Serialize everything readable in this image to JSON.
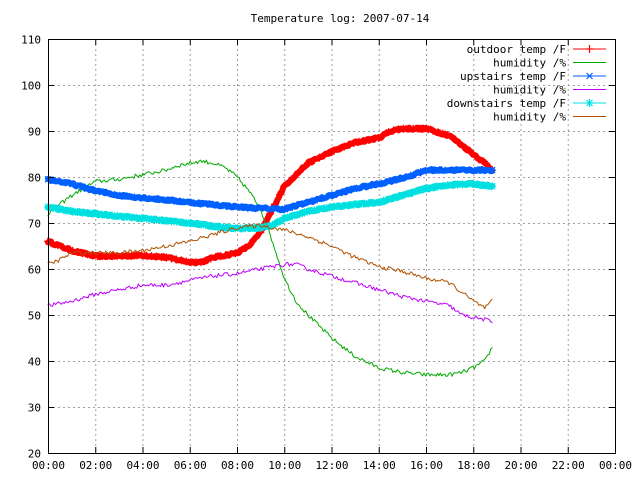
{
  "chart_data": {
    "type": "line",
    "title": "Temperature log: 2007-07-14",
    "xlabel": "",
    "ylabel": "",
    "xlim": [
      0,
      24
    ],
    "ylim": [
      20,
      110
    ],
    "grid": true,
    "legend_position": "top-right",
    "x_tick_labels": [
      "00:00",
      "02:00",
      "04:00",
      "06:00",
      "08:00",
      "10:00",
      "12:00",
      "14:00",
      "16:00",
      "18:00",
      "20:00",
      "22:00",
      "00:00"
    ],
    "y_tick_labels": [
      "20",
      "30",
      "40",
      "50",
      "60",
      "70",
      "80",
      "90",
      "100",
      "110"
    ],
    "series": [
      {
        "name": "outdoor temp /F",
        "color": "#ff0000",
        "marker": "plus",
        "x": [
          0,
          1,
          2,
          3,
          4,
          5,
          6,
          6.5,
          7,
          8,
          8.5,
          9,
          9.5,
          10,
          11,
          12,
          13,
          14,
          14.5,
          15,
          16,
          17,
          17.5,
          18,
          18.5,
          18.8
        ],
        "y": [
          66,
          64,
          62.8,
          62.8,
          63,
          62.5,
          61.5,
          61.5,
          62.5,
          63.5,
          65,
          68,
          73,
          78,
          83,
          85.5,
          87.5,
          88.5,
          90,
          90.5,
          90.5,
          89,
          87,
          85,
          83,
          81.5
        ]
      },
      {
        "name": "humidity /%",
        "color": "#00aa00",
        "marker": "none",
        "x": [
          0,
          1,
          2,
          3,
          4,
          5,
          5.5,
          6,
          6.5,
          7,
          7.5,
          8,
          8.5,
          9,
          9.5,
          10,
          10.5,
          11,
          12,
          13,
          14,
          15,
          16,
          17,
          17.5,
          18,
          18.5,
          18.8
        ],
        "y": [
          72,
          76,
          79,
          79.5,
          80.5,
          81.5,
          82.5,
          83,
          83.5,
          83,
          82,
          80,
          77,
          73,
          66,
          58,
          53,
          50,
          45,
          41,
          38.5,
          37.5,
          37,
          37,
          37.5,
          38.5,
          40,
          43
        ]
      },
      {
        "name": "upstairs temp /F",
        "color": "#0060ff",
        "marker": "x",
        "x": [
          0,
          1,
          2,
          3,
          4,
          5,
          6,
          7,
          8,
          9,
          10,
          11,
          12,
          13,
          14,
          15,
          15.5,
          16,
          17,
          18,
          18.8
        ],
        "y": [
          79.5,
          78.5,
          77,
          76,
          75.5,
          75,
          74.5,
          74,
          73.5,
          73.2,
          73,
          74.5,
          76,
          77.5,
          78.5,
          79.8,
          80.5,
          81.5,
          81.5,
          81.5,
          81.5
        ]
      },
      {
        "name": "humidity /%",
        "color": "#c000ff",
        "marker": "none",
        "x": [
          0,
          1,
          2,
          3,
          4,
          5,
          6,
          7,
          8,
          9,
          10,
          10.5,
          11,
          12,
          13,
          14,
          15,
          16,
          17,
          17.5,
          18,
          18.5,
          18.8
        ],
        "y": [
          52,
          53,
          54.5,
          55.5,
          56.5,
          56.5,
          57.5,
          58.5,
          59,
          60,
          61,
          61,
          60,
          58.5,
          57,
          55.5,
          54,
          53,
          52,
          50,
          49.5,
          49,
          48.5
        ]
      },
      {
        "name": "downstairs temp /F",
        "color": "#00e0e0",
        "marker": "star",
        "x": [
          0,
          1,
          2,
          3,
          4,
          5,
          6,
          7,
          8,
          9,
          9.5,
          10,
          11,
          12,
          13,
          14,
          15,
          16,
          17,
          18,
          18.8
        ],
        "y": [
          73.5,
          72.5,
          72,
          71.5,
          71,
          70.5,
          70,
          69.3,
          68.8,
          69,
          69.5,
          71,
          72.5,
          73.5,
          74,
          74.5,
          76,
          77.5,
          78.3,
          78.5,
          78
        ]
      },
      {
        "name": "humidity /%",
        "color": "#b05000",
        "marker": "none",
        "x": [
          0,
          0.5,
          1,
          2,
          3,
          4,
          5,
          6,
          7,
          8,
          9,
          10,
          11,
          12,
          13,
          14,
          15,
          16,
          17,
          17.5,
          18,
          18.5,
          18.8
        ],
        "y": [
          61,
          62,
          63.5,
          63.5,
          63.5,
          64,
          65,
          66,
          67.5,
          69,
          69.5,
          68.5,
          67,
          65,
          62.5,
          60.5,
          59.5,
          58,
          57,
          55,
          53,
          51.5,
          53
        ]
      }
    ]
  }
}
